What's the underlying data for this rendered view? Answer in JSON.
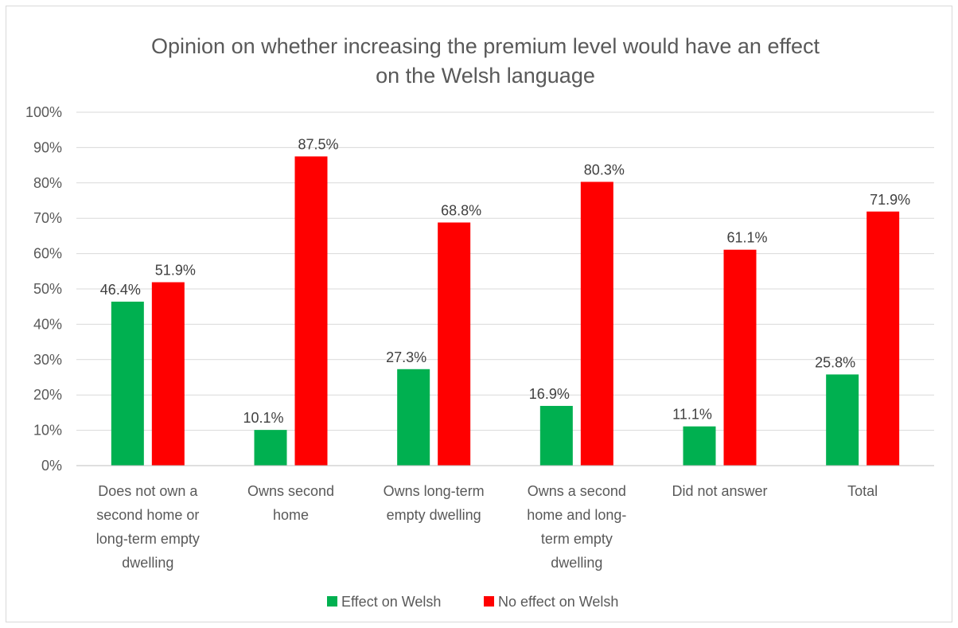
{
  "chart_data": {
    "type": "bar",
    "title": "Opinion on whether increasing the premium level would have an effect on the Welsh language",
    "title_lines": [
      "Opinion on whether increasing the premium level would have an effect",
      "on the Welsh language"
    ],
    "categories": [
      "Does not own a second home or long-term empty dwelling",
      "Owns second home",
      "Owns long-term empty dwelling",
      "Owns a second home and long-term empty dwelling",
      "Did not answer",
      "Total"
    ],
    "category_lines": [
      [
        "Does not own a",
        "second home or",
        "long-term empty",
        "dwelling"
      ],
      [
        "Owns second",
        "home"
      ],
      [
        "Owns long-term",
        "empty dwelling"
      ],
      [
        "Owns a second",
        "home and long-",
        "term empty",
        "dwelling"
      ],
      [
        "Did not answer"
      ],
      [
        "Total"
      ]
    ],
    "series": [
      {
        "name": "Effect on Welsh",
        "color": "#00b050",
        "values": [
          46.4,
          10.1,
          27.3,
          16.9,
          11.1,
          25.8
        ],
        "labels": [
          "46.4%",
          "10.1%",
          "27.3%",
          "16.9%",
          "11.1%",
          "25.8%"
        ]
      },
      {
        "name": "No effect on Welsh",
        "color": "#ff0000",
        "values": [
          51.9,
          87.5,
          68.8,
          80.3,
          61.1,
          71.9
        ],
        "labels": [
          "51.9%",
          "87.5%",
          "68.8%",
          "80.3%",
          "61.1%",
          "71.9%"
        ]
      }
    ],
    "ylim": [
      0,
      100
    ],
    "yticks": [
      0,
      10,
      20,
      30,
      40,
      50,
      60,
      70,
      80,
      90,
      100
    ],
    "ytick_labels": [
      "0%",
      "10%",
      "20%",
      "30%",
      "40%",
      "50%",
      "60%",
      "70%",
      "80%",
      "90%",
      "100%"
    ],
    "grid": true,
    "legend_position": "bottom",
    "gridline_color": "#d9d9d9",
    "axis_color": "#bfbfbf"
  }
}
